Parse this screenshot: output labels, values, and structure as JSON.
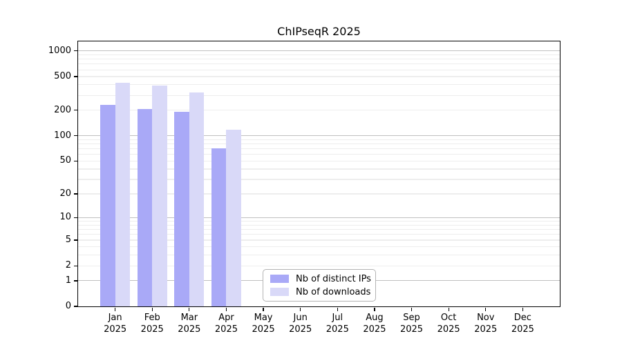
{
  "title": "ChIPseqR 2025",
  "chart_data": {
    "type": "bar",
    "title": "ChIPseqR 2025",
    "categories": [
      "Jan",
      "Feb",
      "Mar",
      "Apr",
      "May",
      "Jun",
      "Jul",
      "Aug",
      "Sep",
      "Oct",
      "Nov",
      "Dec"
    ],
    "year": "2025",
    "series": [
      {
        "name": "Nb of distinct IPs",
        "values": [
          230,
          205,
          192,
          71,
          null,
          null,
          null,
          null,
          null,
          null,
          null,
          null
        ]
      },
      {
        "name": "Nb of downloads",
        "values": [
          420,
          390,
          325,
          118,
          null,
          null,
          null,
          null,
          null,
          null,
          null,
          null
        ]
      }
    ],
    "y_scale": "log10(value+1)",
    "y_ticks": [
      0,
      1,
      2,
      5,
      10,
      20,
      50,
      100,
      200,
      500,
      1000
    ],
    "ylim": [
      0,
      1280
    ],
    "xlabel": "",
    "ylabel": "",
    "grid": true,
    "legend_position": "bottom-center-inside",
    "colors": {
      "distinct_ips": "#a9a9f7",
      "downloads": "#d9d9f8",
      "grid_major": "#c0c0c0",
      "grid_minor": "#ededed",
      "axis": "#000000",
      "legend_border": "#b3b3b3"
    }
  }
}
